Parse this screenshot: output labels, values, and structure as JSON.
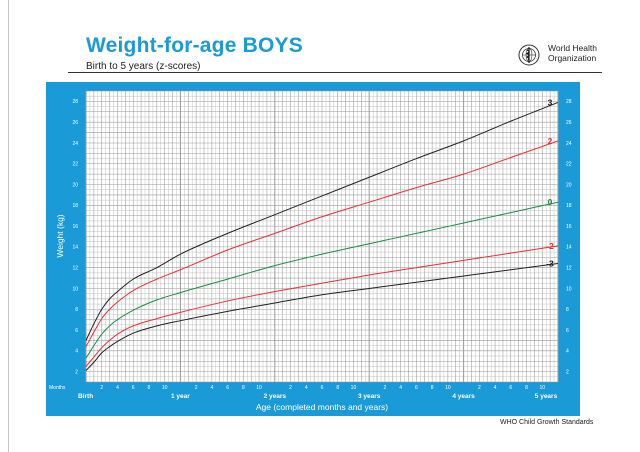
{
  "header": {
    "title": "Weight-for-age BOYS",
    "subtitle": "Birth to 5 years (z-scores)",
    "org_line1": "World Health",
    "org_line2": "Organization"
  },
  "footer": {
    "text": "WHO Child Growth Standards"
  },
  "colors": {
    "frame": "#1a9ad6",
    "title": "#1a9ad6",
    "grid": "#9a9a9a",
    "z3": "#222222",
    "z2": "#e8303b",
    "z0": "#1c8c44",
    "zm2": "#e8303b",
    "zm3": "#222222"
  },
  "chart_data": {
    "type": "line",
    "title": "Weight-for-age BOYS",
    "subtitle": "Birth to 5 years (z-scores)",
    "xlabel": "Age (completed months and years)",
    "ylabel": "Weight (kg)",
    "xlim": [
      0,
      60
    ],
    "ylim": [
      1,
      29
    ],
    "x_units": "months",
    "corner_label": "Months",
    "y_ticks": [
      2,
      4,
      6,
      8,
      10,
      12,
      14,
      16,
      18,
      20,
      22,
      24,
      26,
      28
    ],
    "month_ticks": [
      {
        "m": 2,
        "label": "2"
      },
      {
        "m": 4,
        "label": "4"
      },
      {
        "m": 6,
        "label": "6"
      },
      {
        "m": 8,
        "label": "8"
      },
      {
        "m": 10,
        "label": "10"
      },
      {
        "m": 14,
        "label": "2"
      },
      {
        "m": 16,
        "label": "4"
      },
      {
        "m": 18,
        "label": "6"
      },
      {
        "m": 20,
        "label": "8"
      },
      {
        "m": 22,
        "label": "10"
      },
      {
        "m": 26,
        "label": "2"
      },
      {
        "m": 28,
        "label": "4"
      },
      {
        "m": 30,
        "label": "6"
      },
      {
        "m": 32,
        "label": "8"
      },
      {
        "m": 34,
        "label": "10"
      },
      {
        "m": 38,
        "label": "2"
      },
      {
        "m": 40,
        "label": "4"
      },
      {
        "m": 42,
        "label": "6"
      },
      {
        "m": 44,
        "label": "8"
      },
      {
        "m": 46,
        "label": "10"
      },
      {
        "m": 50,
        "label": "2"
      },
      {
        "m": 52,
        "label": "4"
      },
      {
        "m": 54,
        "label": "6"
      },
      {
        "m": 56,
        "label": "8"
      },
      {
        "m": 58,
        "label": "10"
      }
    ],
    "age_labels": [
      {
        "m": 0,
        "label": "Birth"
      },
      {
        "m": 12,
        "label": "1 year"
      },
      {
        "m": 24,
        "label": "2 years"
      },
      {
        "m": 36,
        "label": "3 years"
      },
      {
        "m": 48,
        "label": "4 years"
      },
      {
        "m": 60,
        "label": "5 years"
      }
    ],
    "x": [
      0,
      1,
      2,
      3,
      4,
      6,
      9,
      12,
      18,
      24,
      30,
      36,
      42,
      48,
      54,
      60
    ],
    "series": [
      {
        "name": "3",
        "color_key": "z3",
        "values": [
          5.0,
          6.6,
          8.0,
          9.0,
          9.7,
          10.9,
          12.0,
          13.3,
          15.3,
          17.1,
          18.9,
          20.7,
          22.5,
          24.2,
          26.1,
          27.9
        ]
      },
      {
        "name": "2",
        "color_key": "z2",
        "values": [
          4.4,
          5.8,
          7.1,
          8.0,
          8.7,
          9.8,
          10.9,
          11.8,
          13.7,
          15.3,
          16.9,
          18.3,
          19.7,
          21.0,
          22.6,
          24.2
        ]
      },
      {
        "name": "0",
        "color_key": "z0",
        "values": [
          3.3,
          4.5,
          5.6,
          6.4,
          7.0,
          7.9,
          8.9,
          9.6,
          10.9,
          12.2,
          13.3,
          14.3,
          15.3,
          16.3,
          17.3,
          18.3
        ]
      },
      {
        "name": "-2",
        "color_key": "zm2",
        "values": [
          2.5,
          3.4,
          4.3,
          5.0,
          5.6,
          6.4,
          7.1,
          7.7,
          8.8,
          9.7,
          10.5,
          11.3,
          12.0,
          12.7,
          13.4,
          14.1
        ]
      },
      {
        "name": "-3",
        "color_key": "zm3",
        "values": [
          2.1,
          2.9,
          3.8,
          4.4,
          4.9,
          5.7,
          6.4,
          6.9,
          7.8,
          8.6,
          9.4,
          10.0,
          10.6,
          11.2,
          11.8,
          12.4
        ]
      }
    ]
  }
}
